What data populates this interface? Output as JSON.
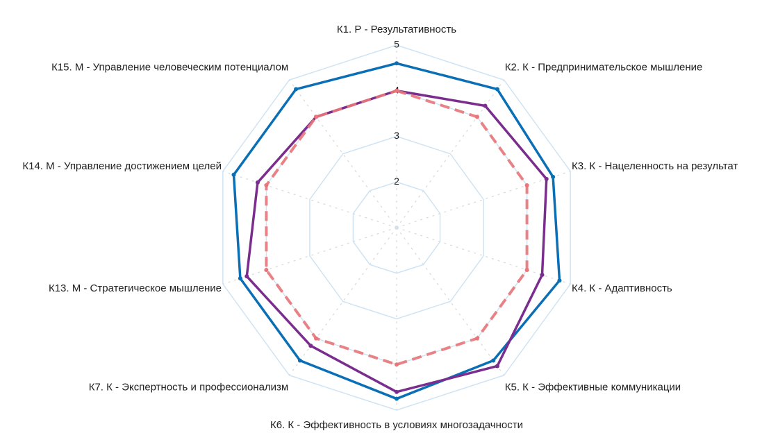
{
  "chart_data": {
    "type": "radar",
    "categories": [
      "К1. Р - Результативность",
      "К2. К - Предпринимательское мышление",
      "К3. К - Нацеленность на результат",
      "К4. К - Адаптивность",
      "К5. К - Эффективные коммуникации",
      "К6. К - Эффективность в условиях многозадачности",
      "К7. К - Экспертность и профессионализм",
      "К13. М - Стратегическое мышление",
      "К14. М - Управление достижением целей",
      "К15. М - Управление человеческим потенциалом"
    ],
    "rlim": [
      1,
      5
    ],
    "rticks": [
      2,
      3,
      4,
      5
    ],
    "grid": true,
    "grid_color": "#cfe3f3",
    "series": [
      {
        "color": "#0a6fb5",
        "line_style": "solid",
        "values": [
          4.6,
          4.75,
          4.6,
          4.75,
          4.6,
          4.75,
          4.6,
          4.6,
          4.75,
          4.75
        ]
      },
      {
        "color": "#7b2d8e",
        "line_style": "solid",
        "values": [
          4.0,
          4.3,
          4.45,
          4.35,
          4.75,
          4.6,
          4.2,
          4.45,
          4.2,
          4.0
        ]
      },
      {
        "color": "#e8767a",
        "line_style": "dashed",
        "values": [
          4,
          4,
          4,
          4,
          4,
          4,
          4,
          4,
          4,
          4
        ]
      }
    ]
  }
}
